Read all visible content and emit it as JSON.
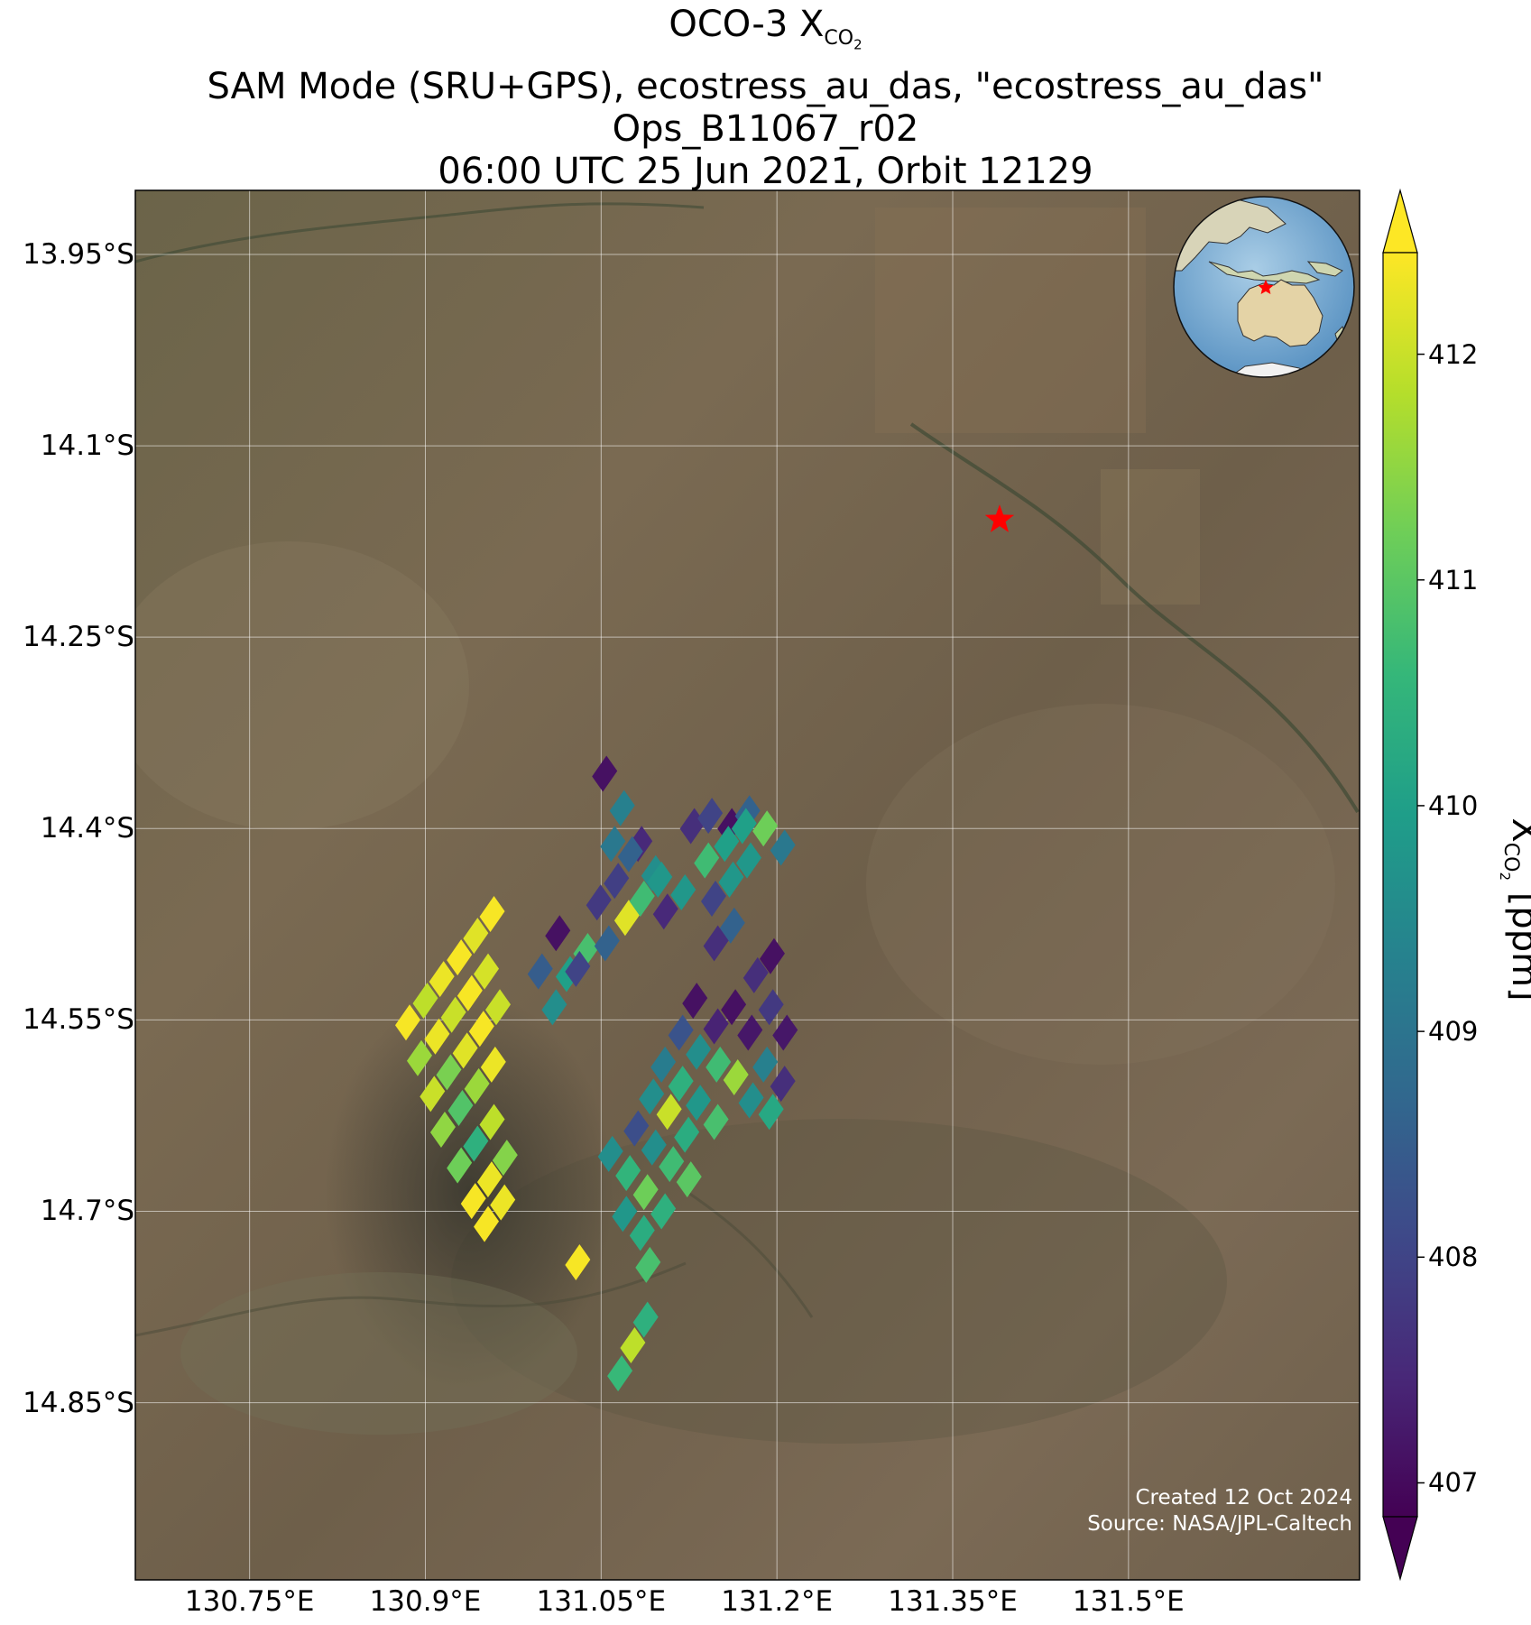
{
  "title": {
    "line1_prefix": "OCO-3 X",
    "line1_sub": "CO",
    "line1_sub2": "2",
    "line2": "SAM Mode (SRU+GPS), ecostress_au_das, \"ecostress_au_das\"",
    "line3": "Ops_B11067_r02",
    "line4": "06:00 UTC 25 Jun 2021, Orbit 12129"
  },
  "map": {
    "lat_ticks": [
      {
        "value": -13.95,
        "label": "13.95°S"
      },
      {
        "value": -14.1,
        "label": "14.1°S"
      },
      {
        "value": -14.25,
        "label": "14.25°S"
      },
      {
        "value": -14.4,
        "label": "14.4°S"
      },
      {
        "value": -14.55,
        "label": "14.55°S"
      },
      {
        "value": -14.7,
        "label": "14.7°S"
      },
      {
        "value": -14.85,
        "label": "14.85°S"
      }
    ],
    "lon_ticks": [
      {
        "value": 130.75,
        "label": "130.75°E"
      },
      {
        "value": 130.9,
        "label": "130.9°E"
      },
      {
        "value": 131.05,
        "label": "131.05°E"
      },
      {
        "value": 131.2,
        "label": "131.2°E"
      },
      {
        "value": 131.35,
        "label": "131.35°E"
      },
      {
        "value": 131.5,
        "label": "131.5°E"
      }
    ],
    "lon_range": [
      130.6525,
      131.6972
    ],
    "lat_range": [
      -14.9889,
      -13.8998
    ],
    "target_marker": {
      "lon": 131.39,
      "lat": -14.158,
      "color": "#ff0000",
      "symbol": "star"
    },
    "basemap": "satellite imagery",
    "grid": true,
    "inset_globe": {
      "center": "Australia",
      "marker_color": "#ff0000"
    },
    "credits": [
      "Created 12 Oct 2024",
      "Source: NASA/JPL-Caltech"
    ]
  },
  "colorbar": {
    "colormap": "viridis",
    "range": [
      406.85,
      412.45
    ],
    "ticks": [
      407,
      408,
      409,
      410,
      411,
      412
    ],
    "label_prefix": "X",
    "label_sub": "CO",
    "label_sub2": "2",
    "label_suffix": " [ppm]",
    "extend": "both"
  },
  "chart_data": {
    "type": "heatmap",
    "title": "OCO-3 XCO2",
    "variable": "XCO2",
    "unit": "ppm",
    "footprint_shape": "parallelogram",
    "soundings": [
      {
        "lon": 130.885,
        "lat": -14.552,
        "xco2": 412.4
      },
      {
        "lon": 130.9,
        "lat": -14.535,
        "xco2": 411.9
      },
      {
        "lon": 130.914,
        "lat": -14.518,
        "xco2": 412.3
      },
      {
        "lon": 130.929,
        "lat": -14.501,
        "xco2": 412.4
      },
      {
        "lon": 130.943,
        "lat": -14.484,
        "xco2": 412.2
      },
      {
        "lon": 130.957,
        "lat": -14.467,
        "xco2": 412.4
      },
      {
        "lon": 130.895,
        "lat": -14.58,
        "xco2": 411.6
      },
      {
        "lon": 130.91,
        "lat": -14.563,
        "xco2": 412.3
      },
      {
        "lon": 130.924,
        "lat": -14.546,
        "xco2": 412.0
      },
      {
        "lon": 130.938,
        "lat": -14.529,
        "xco2": 412.4
      },
      {
        "lon": 130.952,
        "lat": -14.512,
        "xco2": 412.1
      },
      {
        "lon": 130.906,
        "lat": -14.608,
        "xco2": 412.0
      },
      {
        "lon": 130.92,
        "lat": -14.591,
        "xco2": 411.3
      },
      {
        "lon": 130.934,
        "lat": -14.574,
        "xco2": 412.2
      },
      {
        "lon": 130.948,
        "lat": -14.557,
        "xco2": 412.4
      },
      {
        "lon": 130.962,
        "lat": -14.54,
        "xco2": 412.0
      },
      {
        "lon": 130.915,
        "lat": -14.636,
        "xco2": 411.5
      },
      {
        "lon": 130.93,
        "lat": -14.619,
        "xco2": 410.9
      },
      {
        "lon": 130.944,
        "lat": -14.602,
        "xco2": 411.6
      },
      {
        "lon": 130.958,
        "lat": -14.585,
        "xco2": 412.3
      },
      {
        "lon": 130.929,
        "lat": -14.664,
        "xco2": 411.2
      },
      {
        "lon": 130.943,
        "lat": -14.647,
        "xco2": 410.4
      },
      {
        "lon": 130.957,
        "lat": -14.63,
        "xco2": 411.9
      },
      {
        "lon": 130.941,
        "lat": -14.692,
        "xco2": 412.4
      },
      {
        "lon": 130.955,
        "lat": -14.675,
        "xco2": 412.3
      },
      {
        "lon": 130.968,
        "lat": -14.658,
        "xco2": 411.4
      },
      {
        "lon": 130.952,
        "lat": -14.71,
        "xco2": 412.4
      },
      {
        "lon": 130.966,
        "lat": -14.693,
        "xco2": 412.3
      },
      {
        "lon": 130.998,
        "lat": -14.512,
        "xco2": 408.5
      },
      {
        "lon": 131.01,
        "lat": -14.54,
        "xco2": 409.6
      },
      {
        "lon": 131.013,
        "lat": -14.482,
        "xco2": 407.1
      },
      {
        "lon": 131.022,
        "lat": -14.514,
        "xco2": 410.0
      },
      {
        "lon": 131.037,
        "lat": -14.496,
        "xco2": 410.8
      },
      {
        "lon": 131.053,
        "lat": -14.357,
        "xco2": 407.1
      },
      {
        "lon": 131.068,
        "lat": -14.384,
        "xco2": 409.3
      },
      {
        "lon": 131.06,
        "lat": -14.412,
        "xco2": 409.1
      },
      {
        "lon": 131.083,
        "lat": -14.412,
        "xco2": 407.5
      },
      {
        "lon": 131.048,
        "lat": -14.458,
        "xco2": 407.8
      },
      {
        "lon": 131.063,
        "lat": -14.441,
        "xco2": 407.9
      },
      {
        "lon": 131.075,
        "lat": -14.42,
        "xco2": 408.6
      },
      {
        "lon": 131.095,
        "lat": -14.435,
        "xco2": 409.6
      },
      {
        "lon": 131.055,
        "lat": -14.49,
        "xco2": 408.6
      },
      {
        "lon": 131.072,
        "lat": -14.47,
        "xco2": 412.2
      },
      {
        "lon": 131.085,
        "lat": -14.455,
        "xco2": 410.7
      },
      {
        "lon": 131.1,
        "lat": -14.44,
        "xco2": 409.8
      },
      {
        "lon": 131.105,
        "lat": -14.465,
        "xco2": 407.5
      },
      {
        "lon": 131.12,
        "lat": -14.45,
        "xco2": 409.8
      },
      {
        "lon": 131.03,
        "lat": -14.51,
        "xco2": 408.0
      },
      {
        "lon": 131.128,
        "lat": -14.398,
        "xco2": 407.6
      },
      {
        "lon": 131.143,
        "lat": -14.39,
        "xco2": 408.0
      },
      {
        "lon": 131.16,
        "lat": -14.398,
        "xco2": 407.1
      },
      {
        "lon": 131.175,
        "lat": -14.388,
        "xco2": 408.6
      },
      {
        "lon": 131.14,
        "lat": -14.425,
        "xco2": 410.7
      },
      {
        "lon": 131.157,
        "lat": -14.412,
        "xco2": 410.0
      },
      {
        "lon": 131.172,
        "lat": -14.398,
        "xco2": 410.0
      },
      {
        "lon": 131.19,
        "lat": -14.4,
        "xco2": 411.2
      },
      {
        "lon": 131.205,
        "lat": -14.415,
        "xco2": 409.1
      },
      {
        "lon": 131.146,
        "lat": -14.455,
        "xco2": 408.0
      },
      {
        "lon": 131.161,
        "lat": -14.44,
        "xco2": 409.8
      },
      {
        "lon": 131.176,
        "lat": -14.425,
        "xco2": 409.8
      },
      {
        "lon": 131.162,
        "lat": -14.476,
        "xco2": 408.6
      },
      {
        "lon": 131.148,
        "lat": -14.49,
        "xco2": 407.6
      },
      {
        "lon": 131.182,
        "lat": -14.515,
        "xco2": 407.6
      },
      {
        "lon": 131.196,
        "lat": -14.5,
        "xco2": 407.1
      },
      {
        "lon": 131.195,
        "lat": -14.54,
        "xco2": 407.8
      },
      {
        "lon": 131.207,
        "lat": -14.56,
        "xco2": 407.2
      },
      {
        "lon": 131.13,
        "lat": -14.535,
        "xco2": 407.1
      },
      {
        "lon": 131.148,
        "lat": -14.555,
        "xco2": 407.4
      },
      {
        "lon": 131.163,
        "lat": -14.54,
        "xco2": 407.1
      },
      {
        "lon": 131.177,
        "lat": -14.56,
        "xco2": 407.2
      },
      {
        "lon": 131.118,
        "lat": -14.56,
        "xco2": 408.3
      },
      {
        "lon": 131.133,
        "lat": -14.575,
        "xco2": 409.6
      },
      {
        "lon": 131.15,
        "lat": -14.585,
        "xco2": 410.7
      },
      {
        "lon": 131.165,
        "lat": -14.595,
        "xco2": 411.6
      },
      {
        "lon": 131.19,
        "lat": -14.585,
        "xco2": 409.3
      },
      {
        "lon": 131.205,
        "lat": -14.6,
        "xco2": 407.6
      },
      {
        "lon": 131.178,
        "lat": -14.613,
        "xco2": 409.6
      },
      {
        "lon": 131.195,
        "lat": -14.622,
        "xco2": 410.2
      },
      {
        "lon": 131.103,
        "lat": -14.585,
        "xco2": 409.2
      },
      {
        "lon": 131.118,
        "lat": -14.6,
        "xco2": 410.4
      },
      {
        "lon": 131.133,
        "lat": -14.615,
        "xco2": 409.8
      },
      {
        "lon": 131.148,
        "lat": -14.63,
        "xco2": 410.8
      },
      {
        "lon": 131.093,
        "lat": -14.61,
        "xco2": 409.6
      },
      {
        "lon": 131.108,
        "lat": -14.622,
        "xco2": 412.0
      },
      {
        "lon": 131.123,
        "lat": -14.64,
        "xco2": 410.3
      },
      {
        "lon": 131.08,
        "lat": -14.635,
        "xco2": 408.2
      },
      {
        "lon": 131.095,
        "lat": -14.65,
        "xco2": 409.6
      },
      {
        "lon": 131.11,
        "lat": -14.663,
        "xco2": 410.7
      },
      {
        "lon": 131.125,
        "lat": -14.675,
        "xco2": 411.0
      },
      {
        "lon": 131.058,
        "lat": -14.655,
        "xco2": 409.6
      },
      {
        "lon": 131.073,
        "lat": -14.67,
        "xco2": 410.5
      },
      {
        "lon": 131.088,
        "lat": -14.685,
        "xco2": 411.2
      },
      {
        "lon": 131.103,
        "lat": -14.7,
        "xco2": 410.4
      },
      {
        "lon": 131.07,
        "lat": -14.702,
        "xco2": 409.8
      },
      {
        "lon": 131.085,
        "lat": -14.717,
        "xco2": 410.3
      },
      {
        "lon": 131.09,
        "lat": -14.742,
        "xco2": 410.8
      },
      {
        "lon": 131.03,
        "lat": -14.74,
        "xco2": 412.4
      },
      {
        "lon": 131.066,
        "lat": -14.827,
        "xco2": 410.6
      },
      {
        "lon": 131.077,
        "lat": -14.805,
        "xco2": 411.9
      },
      {
        "lon": 131.088,
        "lat": -14.785,
        "xco2": 410.4
      }
    ]
  }
}
